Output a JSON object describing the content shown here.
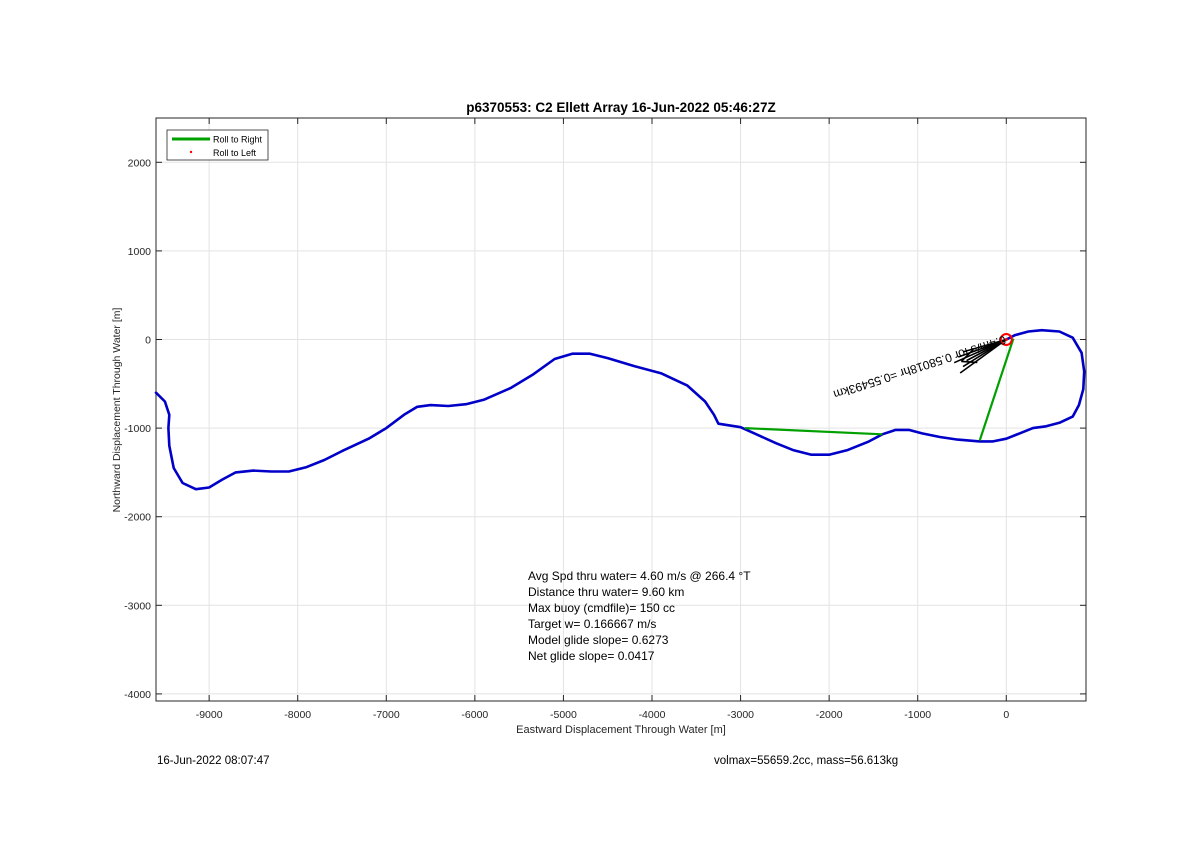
{
  "chart_data": {
    "type": "line",
    "title": "p6370553: C2 Ellett Array 16-Jun-2022 05:46:27Z",
    "xlabel": "Eastward Displacement Through Water [m]",
    "ylabel": "Northward Displacement Through Water [m]",
    "xlim": [
      -9600,
      900
    ],
    "ylim": [
      -4080,
      2500
    ],
    "xticks": [
      -9000,
      -8000,
      -7000,
      -6000,
      -5000,
      -4000,
      -3000,
      -2000,
      -1000,
      0
    ],
    "yticks": [
      -4000,
      -3000,
      -2000,
      -1000,
      0,
      1000,
      2000
    ],
    "grid": true,
    "legend": {
      "location": "top-left",
      "entries": [
        {
          "label": "Roll to Right",
          "color": "#00a000",
          "style": "line"
        },
        {
          "label": "Roll to Left",
          "color": "#ff0000",
          "style": "dot"
        }
      ]
    },
    "series": [
      {
        "name": "",
        "color": "#0000c8",
        "points": [
          [
            -9600,
            -600
          ],
          [
            -9500,
            -700
          ],
          [
            -9450,
            -850
          ],
          [
            -9460,
            -1000
          ],
          [
            -9450,
            -1200
          ],
          [
            -9400,
            -1450
          ],
          [
            -9300,
            -1620
          ],
          [
            -9150,
            -1690
          ],
          [
            -9000,
            -1670
          ],
          [
            -8850,
            -1580
          ],
          [
            -8700,
            -1500
          ],
          [
            -8500,
            -1480
          ],
          [
            -8300,
            -1490
          ],
          [
            -8100,
            -1490
          ],
          [
            -7900,
            -1440
          ],
          [
            -7700,
            -1360
          ],
          [
            -7500,
            -1260
          ],
          [
            -7200,
            -1120
          ],
          [
            -7000,
            -1000
          ],
          [
            -6800,
            -850
          ],
          [
            -6650,
            -760
          ],
          [
            -6500,
            -740
          ],
          [
            -6300,
            -750
          ],
          [
            -6100,
            -730
          ],
          [
            -5900,
            -680
          ],
          [
            -5600,
            -550
          ],
          [
            -5350,
            -400
          ],
          [
            -5100,
            -220
          ],
          [
            -4900,
            -160
          ],
          [
            -4700,
            -160
          ],
          [
            -4500,
            -210
          ],
          [
            -4200,
            -300
          ],
          [
            -3900,
            -380
          ],
          [
            -3600,
            -520
          ],
          [
            -3400,
            -700
          ],
          [
            -3300,
            -850
          ],
          [
            -3250,
            -950
          ],
          [
            -3000,
            -990
          ],
          [
            -2800,
            -1080
          ],
          [
            -2600,
            -1170
          ],
          [
            -2400,
            -1250
          ],
          [
            -2200,
            -1300
          ],
          [
            -2000,
            -1300
          ],
          [
            -1800,
            -1250
          ],
          [
            -1550,
            -1150
          ],
          [
            -1400,
            -1070
          ],
          [
            -1250,
            -1020
          ],
          [
            -1100,
            -1020
          ],
          [
            -950,
            -1060
          ],
          [
            -750,
            -1100
          ],
          [
            -550,
            -1130
          ],
          [
            -300,
            -1150
          ],
          [
            -150,
            -1150
          ],
          [
            0,
            -1120
          ],
          [
            150,
            -1060
          ],
          [
            300,
            -1000
          ],
          [
            450,
            -980
          ],
          [
            600,
            -940
          ],
          [
            750,
            -870
          ],
          [
            820,
            -740
          ],
          [
            870,
            -560
          ],
          [
            880,
            -360
          ],
          [
            850,
            -150
          ],
          [
            750,
            20
          ],
          [
            600,
            90
          ],
          [
            400,
            105
          ],
          [
            250,
            90
          ],
          [
            100,
            50
          ],
          [
            0,
            0
          ]
        ]
      }
    ],
    "roll_right_segments": [
      [
        [
          -2950,
          -1000
        ],
        [
          -1400,
          -1070
        ]
      ],
      [
        [
          -300,
          -1140
        ],
        [
          80,
          10
        ]
      ]
    ],
    "start_marker": {
      "x": 0,
      "y": 0,
      "color": "#ff0000"
    },
    "heading_annotation": "0.4m/s for 0.58018hr =0.55493km",
    "stats": [
      "Avg Spd thru water=  4.60 m/s @ 266.4 °T",
      "Distance thru water=  9.60 km",
      "Max buoy (cmdfile)= 150 cc",
      "Target w= 0.166667 m/s",
      "Model glide slope= 0.6273",
      "Net glide slope= 0.0417"
    ]
  },
  "footer": {
    "timestamp": "16-Jun-2022 08:07:47",
    "vol_mass": "volmax=55659.2cc, mass=56.613kg"
  }
}
